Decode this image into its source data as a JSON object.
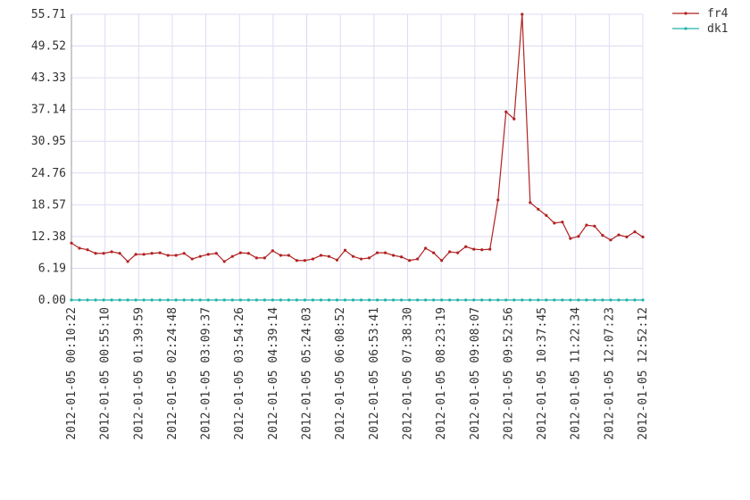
{
  "chart_data": {
    "type": "line",
    "x": [
      "2012-01-05 00:10:22",
      "2012-01-05 00:21:06",
      "2012-01-05 00:31:50",
      "2012-01-05 00:42:33",
      "2012-01-05 00:53:17",
      "2012-01-05 01:04:01",
      "2012-01-05 01:14:45",
      "2012-01-05 01:25:29",
      "2012-01-05 01:36:12",
      "2012-01-05 01:46:56",
      "2012-01-05 01:57:40",
      "2012-01-05 02:08:24",
      "2012-01-05 02:19:08",
      "2012-01-05 02:29:51",
      "2012-01-05 02:40:35",
      "2012-01-05 02:51:19",
      "2012-01-05 03:02:03",
      "2012-01-05 03:12:47",
      "2012-01-05 03:23:30",
      "2012-01-05 03:34:14",
      "2012-01-05 03:44:58",
      "2012-01-05 03:55:42",
      "2012-01-05 04:06:26",
      "2012-01-05 04:17:09",
      "2012-01-05 04:27:53",
      "2012-01-05 04:38:37",
      "2012-01-05 04:49:21",
      "2012-01-05 05:00:05",
      "2012-01-05 05:10:48",
      "2012-01-05 05:21:32",
      "2012-01-05 05:32:16",
      "2012-01-05 05:43:00",
      "2012-01-05 05:53:44",
      "2012-01-05 06:04:27",
      "2012-01-05 06:15:11",
      "2012-01-05 06:25:55",
      "2012-01-05 06:36:39",
      "2012-01-05 06:47:23",
      "2012-01-05 06:58:07",
      "2012-01-05 07:08:50",
      "2012-01-05 07:19:34",
      "2012-01-05 07:30:18",
      "2012-01-05 07:41:02",
      "2012-01-05 07:51:46",
      "2012-01-05 08:02:29",
      "2012-01-05 08:13:13",
      "2012-01-05 08:23:57",
      "2012-01-05 08:34:41",
      "2012-01-05 08:45:25",
      "2012-01-05 08:56:08",
      "2012-01-05 09:06:52",
      "2012-01-05 09:17:36",
      "2012-01-05 09:28:20",
      "2012-01-05 09:39:04",
      "2012-01-05 09:49:47",
      "2012-01-05 10:00:31",
      "2012-01-05 10:11:15",
      "2012-01-05 10:21:59",
      "2012-01-05 10:32:43",
      "2012-01-05 10:43:26",
      "2012-01-05 10:54:10",
      "2012-01-05 11:04:54",
      "2012-01-05 11:15:38",
      "2012-01-05 11:26:22",
      "2012-01-05 11:37:05",
      "2012-01-05 11:47:49",
      "2012-01-05 11:58:33",
      "2012-01-05 12:09:17",
      "2012-01-05 12:20:01",
      "2012-01-05 12:30:44",
      "2012-01-05 12:41:28",
      "2012-01-05 12:52:12"
    ],
    "series": [
      {
        "name": "fr4",
        "color": "#b22222",
        "values": [
          11.1,
          10.1,
          9.8,
          9.1,
          9.1,
          9.4,
          9.1,
          7.5,
          8.9,
          8.9,
          9.1,
          9.2,
          8.7,
          8.7,
          9.1,
          8.0,
          8.5,
          8.9,
          9.1,
          7.5,
          8.5,
          9.2,
          9.1,
          8.2,
          8.2,
          9.6,
          8.7,
          8.7,
          7.7,
          7.7,
          8.0,
          8.7,
          8.5,
          7.8,
          9.7,
          8.5,
          8.0,
          8.2,
          9.2,
          9.2,
          8.7,
          8.4,
          7.7,
          8.0,
          10.1,
          9.2,
          7.7,
          9.4,
          9.2,
          10.4,
          9.9,
          9.8,
          9.9,
          19.5,
          36.7,
          35.3,
          55.71,
          19.0,
          17.7,
          16.5,
          15.0,
          15.2,
          12.0,
          12.4,
          14.6,
          14.4,
          12.6,
          11.7,
          12.7,
          12.3,
          13.3,
          12.3
        ]
      },
      {
        "name": "dk1",
        "color": "#20b2aa",
        "values": [
          0,
          0,
          0,
          0,
          0,
          0,
          0,
          0,
          0,
          0,
          0,
          0,
          0,
          0,
          0,
          0,
          0,
          0,
          0,
          0,
          0,
          0,
          0,
          0,
          0,
          0,
          0,
          0,
          0,
          0,
          0,
          0,
          0,
          0,
          0,
          0,
          0,
          0,
          0,
          0,
          0,
          0,
          0,
          0,
          0,
          0,
          0,
          0,
          0,
          0,
          0,
          0,
          0,
          0,
          0,
          0,
          0,
          0,
          0,
          0,
          0,
          0,
          0,
          0,
          0,
          0,
          0,
          0,
          0,
          0,
          0,
          0
        ]
      }
    ],
    "xlim": [
      "2012-01-05 00:10:22",
      "2012-01-05 12:52:12"
    ],
    "xticks": [
      "2012-01-05 00:10:22",
      "2012-01-05 00:55:10",
      "2012-01-05 01:39:59",
      "2012-01-05 02:24:48",
      "2012-01-05 03:09:37",
      "2012-01-05 03:54:26",
      "2012-01-05 04:39:14",
      "2012-01-05 05:24:03",
      "2012-01-05 06:08:52",
      "2012-01-05 06:53:41",
      "2012-01-05 07:38:30",
      "2012-01-05 08:23:19",
      "2012-01-05 09:08:07",
      "2012-01-05 09:52:56",
      "2012-01-05 10:37:45",
      "2012-01-05 11:22:34",
      "2012-01-05 12:07:23",
      "2012-01-05 12:52:12"
    ],
    "ylim": [
      0,
      55.71
    ],
    "yticks": [
      {
        "value": 0,
        "label": "0.00"
      },
      6.19,
      12.38,
      18.57,
      24.76,
      30.95,
      37.14,
      43.33,
      49.52,
      55.71
    ],
    "grid": true,
    "legend": "top-right"
  }
}
